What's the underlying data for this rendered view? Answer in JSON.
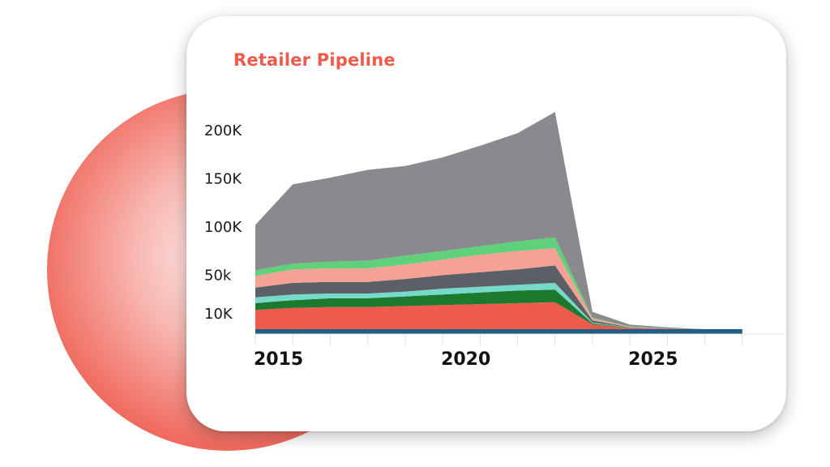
{
  "colors": {
    "accent": "#ef5a4c",
    "orb": "#ef5a4c"
  },
  "chart_data": {
    "type": "area",
    "title": "Retailer Pipeline",
    "xlabel": "",
    "ylabel": "",
    "x": [
      2015,
      2016,
      2017,
      2018,
      2019,
      2020,
      2021,
      2022,
      2023,
      2024,
      2025,
      2026,
      2027,
      2028
    ],
    "x_tick_labels": [
      "2015",
      "2020",
      "2025"
    ],
    "x_tick_values": [
      2015,
      2020,
      2025
    ],
    "y_tick_labels": [
      "10K",
      "50k",
      "100K",
      "150K",
      "200K"
    ],
    "y_tick_values": [
      10000,
      50000,
      100000,
      150000,
      200000
    ],
    "ylim": [
      0,
      220000
    ],
    "xlim": [
      2015,
      2029
    ],
    "grid": false,
    "stacked": true,
    "series": [
      {
        "color": "#1f5f86",
        "values": [
          5000,
          5000,
          5000,
          5000,
          5000,
          5000,
          5000,
          5000,
          5000,
          5000,
          5000,
          5000,
          5000,
          5000
        ]
      },
      {
        "color": "#ef5a4c",
        "values": [
          20000,
          22000,
          23000,
          23000,
          24000,
          25000,
          26000,
          27000,
          28000,
          5000,
          1000,
          500,
          0,
          0
        ]
      },
      {
        "color": "#1c7a2e",
        "values": [
          7000,
          8000,
          9000,
          9000,
          10000,
          11000,
          12000,
          13000,
          13000,
          1000,
          300,
          0,
          0,
          0
        ]
      },
      {
        "color": "#76d9c9",
        "values": [
          6000,
          6000,
          5000,
          5000,
          5000,
          6000,
          6000,
          6000,
          7000,
          1000,
          200,
          0,
          0,
          0
        ]
      },
      {
        "color": "#5b5f66",
        "values": [
          10000,
          12000,
          12000,
          12000,
          13000,
          14000,
          15000,
          16000,
          18000,
          2000,
          500,
          200,
          0,
          0
        ]
      },
      {
        "color": "#f5a196",
        "values": [
          12000,
          14000,
          14000,
          14000,
          15000,
          16000,
          18000,
          19000,
          18000,
          2000,
          500,
          200,
          0,
          0
        ]
      },
      {
        "color": "#5fd17b",
        "values": [
          6000,
          6000,
          7000,
          8000,
          9000,
          9000,
          9000,
          10000,
          11000,
          1000,
          200,
          0,
          0,
          0
        ]
      },
      {
        "color": "#888a8d",
        "values": [
          47000,
          82000,
          87000,
          94000,
          93000,
          97000,
          104000,
          112000,
          130000,
          6000,
          2000,
          1000,
          0,
          0
        ]
      }
    ]
  }
}
